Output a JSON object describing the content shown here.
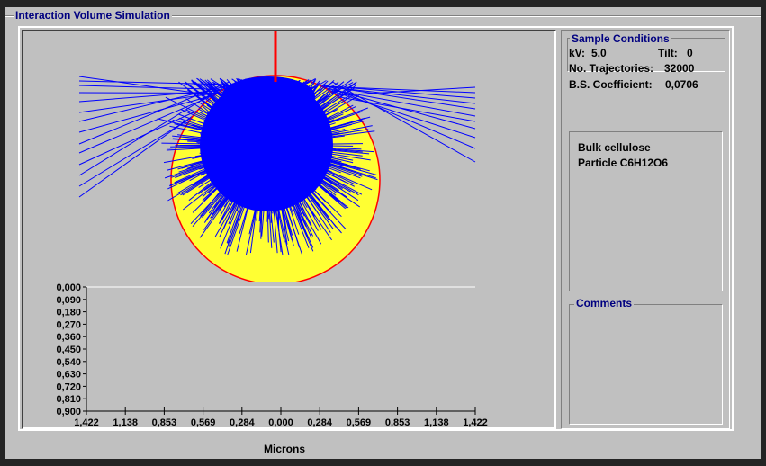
{
  "window": {
    "title": "Interaction Volume Simulation"
  },
  "plot": {
    "y_ticks": [
      "0,000",
      "0,090",
      "0,180",
      "0,270",
      "0,360",
      "0,450",
      "0,540",
      "0,630",
      "0,720",
      "0,810",
      "0,900"
    ],
    "x_ticks": [
      "1,422",
      "1,138",
      "0,853",
      "0,569",
      "0,284",
      "0,000",
      "0,284",
      "0,569",
      "0,853",
      "1,138",
      "1,422"
    ],
    "x_label": "Microns",
    "colors": {
      "particle": "#ffff33",
      "particle_edge": "#ff0000",
      "trajectories": "#0000ff",
      "beam": "#ff0000"
    }
  },
  "sample_conditions": {
    "header": "Sample Conditions",
    "kv_label": "kV:",
    "kv_value": "5,0",
    "tilt_label": "Tilt:",
    "tilt_value": "0",
    "trajectories_label": "No. Trajectories:",
    "trajectories_value": "32000",
    "bs_label": "B.S. Coefficient:",
    "bs_value": "0,0706"
  },
  "description": {
    "line1": "Bulk cellulose",
    "line2": "Particle C6H12O6"
  },
  "comments": {
    "header": "Comments",
    "text": ""
  }
}
